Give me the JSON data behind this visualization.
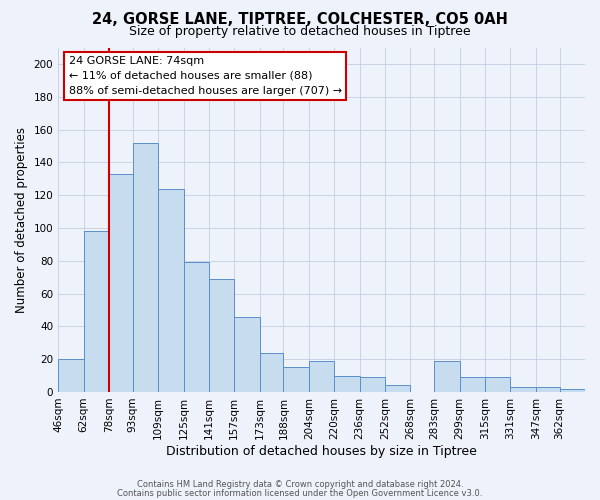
{
  "title": "24, GORSE LANE, TIPTREE, COLCHESTER, CO5 0AH",
  "subtitle": "Size of property relative to detached houses in Tiptree",
  "xlabel": "Distribution of detached houses by size in Tiptree",
  "ylabel": "Number of detached properties",
  "bar_labels": [
    "46sqm",
    "62sqm",
    "78sqm",
    "93sqm",
    "109sqm",
    "125sqm",
    "141sqm",
    "157sqm",
    "173sqm",
    "188sqm",
    "204sqm",
    "220sqm",
    "236sqm",
    "252sqm",
    "268sqm",
    "283sqm",
    "299sqm",
    "315sqm",
    "331sqm",
    "347sqm",
    "362sqm"
  ],
  "bar_heights": [
    20,
    98,
    133,
    152,
    124,
    79,
    69,
    46,
    24,
    15,
    19,
    10,
    9,
    4,
    0,
    19,
    9,
    9,
    3,
    3,
    2
  ],
  "bar_color": "#c8dcf0",
  "bar_edge_color": "#5a8fcc",
  "background_color": "#eef2fa",
  "grid_color": "#c5cfe0",
  "vline_x": 78,
  "vline_color": "#cc0000",
  "ylim": [
    0,
    210
  ],
  "yticks": [
    0,
    20,
    40,
    60,
    80,
    100,
    120,
    140,
    160,
    180,
    200
  ],
  "bin_edges": [
    46,
    62,
    78,
    93,
    109,
    125,
    141,
    157,
    173,
    188,
    204,
    220,
    236,
    252,
    268,
    283,
    299,
    315,
    331,
    347,
    362,
    378
  ],
  "annotation_title": "24 GORSE LANE: 74sqm",
  "annotation_line1": "← 11% of detached houses are smaller (88)",
  "annotation_line2": "88% of semi-detached houses are larger (707) →",
  "annotation_box_color": "#ffffff",
  "annotation_edge_color": "#cc0000",
  "footer1": "Contains HM Land Registry data © Crown copyright and database right 2024.",
  "footer2": "Contains public sector information licensed under the Open Government Licence v3.0."
}
